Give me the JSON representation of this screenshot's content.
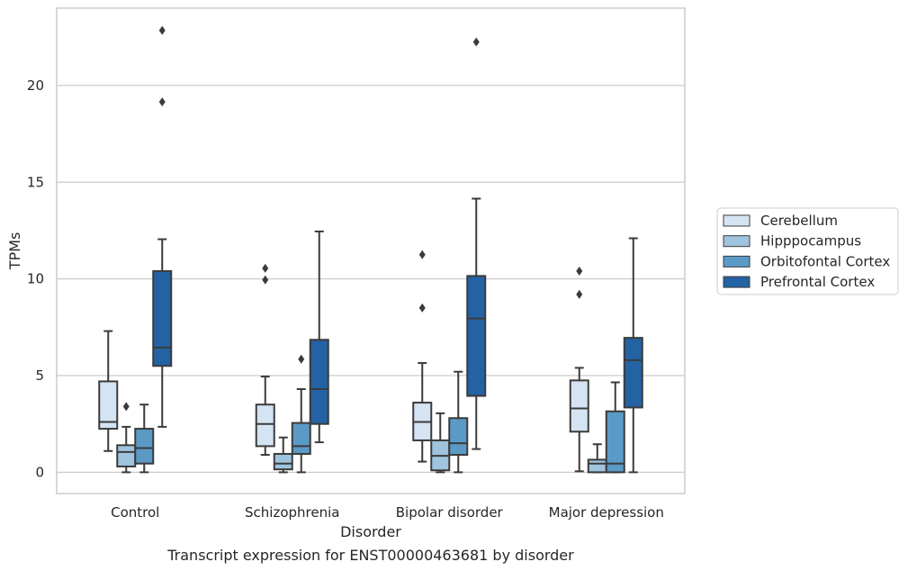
{
  "caption": "Transcript expression for ENST00000463681 by disorder",
  "chart_data": {
    "type": "box",
    "title": "",
    "xlabel": "Disorder",
    "ylabel": "TPMs",
    "ylim": [
      -1.1,
      24.0
    ],
    "yticks": [
      0,
      5,
      10,
      15,
      20
    ],
    "grid": "horizontal",
    "legend_position": "right",
    "categories": [
      "Control",
      "Schizophrenia",
      "Bipolar disorder",
      "Major depression"
    ],
    "series": [
      {
        "name": "Cerebellum",
        "color": "#d5e4f3",
        "boxes": [
          {
            "whisker_low": 1.1,
            "q1": 2.25,
            "median": 2.6,
            "q3": 4.7,
            "whisker_high": 7.3,
            "outliers": []
          },
          {
            "whisker_low": 0.9,
            "q1": 1.35,
            "median": 2.5,
            "q3": 3.5,
            "whisker_high": 4.95,
            "outliers": [
              9.95,
              10.55
            ]
          },
          {
            "whisker_low": 0.55,
            "q1": 1.65,
            "median": 2.6,
            "q3": 3.6,
            "whisker_high": 5.65,
            "outliers": [
              8.5,
              11.25
            ]
          },
          {
            "whisker_low": 0.05,
            "q1": 2.1,
            "median": 3.3,
            "q3": 4.75,
            "whisker_high": 5.4,
            "outliers": [
              9.2,
              10.4
            ]
          }
        ]
      },
      {
        "name": "Hipppocampus",
        "color": "#9ec4de",
        "boxes": [
          {
            "whisker_low": 0.0,
            "q1": 0.3,
            "median": 1.05,
            "q3": 1.4,
            "whisker_high": 2.35,
            "outliers": [
              3.4
            ]
          },
          {
            "whisker_low": 0.0,
            "q1": 0.15,
            "median": 0.45,
            "q3": 0.95,
            "whisker_high": 1.8,
            "outliers": []
          },
          {
            "whisker_low": 0.0,
            "q1": 0.1,
            "median": 0.85,
            "q3": 1.65,
            "whisker_high": 3.05,
            "outliers": []
          },
          {
            "whisker_low": 0.0,
            "q1": 0.0,
            "median": 0.45,
            "q3": 0.65,
            "whisker_high": 1.45,
            "outliers": []
          }
        ]
      },
      {
        "name": "Orbitofontal Cortex",
        "color": "#5b9ac7",
        "boxes": [
          {
            "whisker_low": 0.0,
            "q1": 0.45,
            "median": 1.25,
            "q3": 2.25,
            "whisker_high": 3.5,
            "outliers": []
          },
          {
            "whisker_low": 0.0,
            "q1": 0.95,
            "median": 1.35,
            "q3": 2.55,
            "whisker_high": 4.3,
            "outliers": [
              5.85
            ]
          },
          {
            "whisker_low": 0.0,
            "q1": 0.9,
            "median": 1.5,
            "q3": 2.8,
            "whisker_high": 5.2,
            "outliers": []
          },
          {
            "whisker_low": 0.0,
            "q1": 0.0,
            "median": 0.45,
            "q3": 3.15,
            "whisker_high": 4.65,
            "outliers": []
          }
        ]
      },
      {
        "name": "Prefrontal Cortex",
        "color": "#2363a4",
        "boxes": [
          {
            "whisker_low": 2.35,
            "q1": 5.5,
            "median": 6.45,
            "q3": 10.4,
            "whisker_high": 12.05,
            "outliers": [
              19.15,
              22.85
            ]
          },
          {
            "whisker_low": 1.55,
            "q1": 2.5,
            "median": 4.3,
            "q3": 6.85,
            "whisker_high": 12.45,
            "outliers": []
          },
          {
            "whisker_low": 1.2,
            "q1": 3.95,
            "median": 7.95,
            "q3": 10.15,
            "whisker_high": 14.15,
            "outliers": [
              22.25
            ]
          },
          {
            "whisker_low": 0.0,
            "q1": 3.35,
            "median": 5.8,
            "q3": 6.95,
            "whisker_high": 12.1,
            "outliers": []
          }
        ]
      }
    ]
  }
}
